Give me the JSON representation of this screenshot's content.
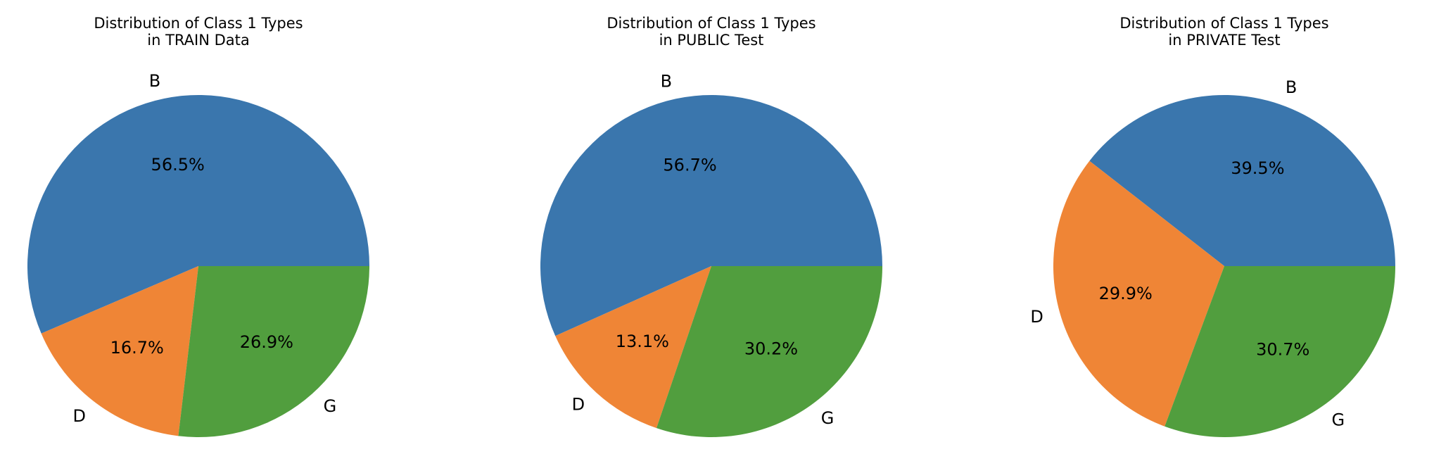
{
  "colors": {
    "B": "#3a76ad",
    "D": "#ef8536",
    "G": "#519e3e",
    "edge": "#ffffff"
  },
  "chart_data": [
    {
      "type": "pie",
      "title": "Distribution of Class 1 Types\nin TRAIN Data",
      "categories": [
        "B",
        "D",
        "G"
      ],
      "values": [
        56.5,
        16.7,
        26.9
      ],
      "value_labels": [
        "56.5%",
        "16.7%",
        "26.9%"
      ],
      "start_angle_deg": 0,
      "direction": "counterclockwise",
      "legend": false
    },
    {
      "type": "pie",
      "title": "Distribution of Class 1 Types\nin PUBLIC Test",
      "categories": [
        "B",
        "D",
        "G"
      ],
      "values": [
        56.7,
        13.1,
        30.2
      ],
      "value_labels": [
        "56.7%",
        "13.1%",
        "30.2%"
      ],
      "start_angle_deg": 0,
      "direction": "counterclockwise",
      "legend": false
    },
    {
      "type": "pie",
      "title": "Distribution of Class 1 Types\nin PRIVATE Test",
      "categories": [
        "B",
        "D",
        "G"
      ],
      "values": [
        39.5,
        29.9,
        30.7
      ],
      "value_labels": [
        "39.5%",
        "29.9%",
        "30.7%"
      ],
      "start_angle_deg": 0,
      "direction": "counterclockwise",
      "legend": false
    }
  ]
}
